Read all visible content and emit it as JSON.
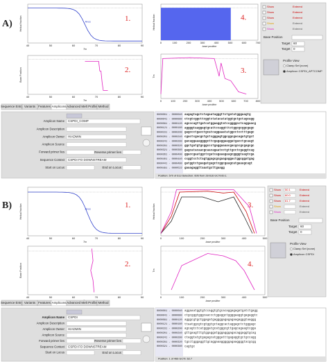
{
  "panels": [
    {
      "label": "A)",
      "plots": [
        {
          "number": "1.",
          "y_label": "Helical fraction",
          "x_label": "Tm",
          "annotation": "Ares",
          "x_ticks": [
            "40",
            "50",
            "60",
            "70",
            "80",
            "90"
          ]
        },
        {
          "number": "2.",
          "y_label": "Base Position",
          "x_label": "Tm",
          "x_ticks": [
            "40",
            "50",
            "60",
            "70",
            "80",
            "90"
          ]
        },
        {
          "number": "3.",
          "y_label": "Tm",
          "x_label": "base position",
          "x_ticks": [
            "0",
            "100",
            "200",
            "300",
            "400",
            "500",
            "600",
            "700",
            "800"
          ]
        },
        {
          "number": "4.",
          "y_label": "Helical fraction",
          "x_label": "base position",
          "x_ticks": [
            "0",
            "100",
            "200",
            "300",
            "400",
            "500",
            "600",
            "700"
          ]
        }
      ],
      "controls": {
        "rows": [
          {
            "show": "Show",
            "state": "Entered"
          },
          {
            "show": "Show",
            "state": "Entered"
          },
          {
            "show": "Show",
            "state": "Entered"
          },
          {
            "show": "Show",
            "state": "Entered"
          },
          {
            "show": "Show",
            "state": "Entered"
          }
        ],
        "base_position": "Base Position",
        "target_1": "Target",
        "target_1_value": "60",
        "target_2": "Target",
        "target_2_value": "0",
        "profile_view": "Profile View",
        "clamp": "Clamp Set (none)",
        "amplicon": "Amplicon CSPDI_APTCOMP"
      },
      "tabs": [
        "Sequence Entry",
        "Variants",
        "Features",
        "Amplicons",
        "Advanced Melt Profile",
        "Method"
      ],
      "form": [
        {
          "label": "Amplicon Name",
          "value": "CSPDI_COMP"
        },
        {
          "label": "Amplicon Description",
          "value": ""
        },
        {
          "label": "Amplicon Owner",
          "value": "HIADMIN"
        },
        {
          "label": "Amplicon Source",
          "value": ""
        },
        {
          "label": "Forward primer lies",
          "value": "Reverse primer lies"
        },
        {
          "label": "Sequence Context",
          "value": "CSPDI FO DOWNSTREAM"
        },
        {
          "label": "Start on Locus",
          "value": "End on Locus"
        }
      ],
      "sequence_lines": [
        {
          "range": "0000001 - 0000040",
          "seq": "aagagtagctctagaatagggttctgatatgggaagtg"
        },
        {
          "range": "0000041 - 0000080",
          "seq": "ctcgtcggcttcggtctatacatatggtgctgctagcagg"
        },
        {
          "range": "0000081 - 0000120",
          "seq": "agcccagttgatcatggaaggtatccggggcctcaggaacg"
        },
        {
          "range": "0000121 - 0000160",
          "seq": "aggggtaaggagtgcattccaggtttctggcgcggcgagc"
        },
        {
          "range": "0000161 - 0000200",
          "seq": "gagccctgacctgcatcaggaaatatggcctcctttgagc"
        },
        {
          "range": "0000201 - 0000240",
          "seq": "cgactcgacgctgctcgggagtggcggcgacagatgtgct"
        },
        {
          "range": "0000241 - 0000280",
          "seq": "gacaggaaaggggcttcgagaggaaggatgacctgcaagt"
        },
        {
          "range": "0000281 - 0000320",
          "seq": "ggctgatgtgcggccctgaggaaaacgacgccgcgagcgc"
        },
        {
          "range": "0000321 - 0000360",
          "seq": "gagcatacaacgcaacagaatcctgttgcctcgaggtcag"
        },
        {
          "range": "0000361 - 0000400",
          "seq": "ggaccgaatggctcgatcagaaagaagcggggtaagtcga"
        },
        {
          "range": "0000401 - 0000440",
          "seq": "ccggtcctctagtggagcgcgaagaggactggcggatgag"
        },
        {
          "range": "0000441 - 0000480",
          "seq": "gatggtctgaagatgagctcggcgaagcatgaaagcagt"
        },
        {
          "range": "0000481 - 0000522",
          "seq": "gaaagaggttaaatgcttgaagg"
        }
      ],
      "status": "Position: 570 of 613   Selection: 606 from 28-616 GC%:60.1"
    },
    {
      "label": "B)",
      "plots": [
        {
          "number": "1.",
          "y_label": "Helical fraction",
          "x_label": "Tm",
          "annotation": "Ares",
          "x_ticks": [
            "40",
            "50",
            "60",
            "70",
            "80",
            "90"
          ]
        },
        {
          "number": "2.",
          "y_label": "Base Position",
          "x_label": "Tm",
          "x_ticks": [
            "40",
            "50",
            "60",
            "70",
            "80",
            "90"
          ]
        },
        {
          "number": "3.",
          "y_label": "Helical fraction",
          "x_label": "base position",
          "x_ticks": [
            "0",
            "100",
            "200",
            "300",
            "400",
            "500"
          ]
        },
        {
          "number": "4.",
          "y_label": "Tm",
          "x_label": "base position",
          "x_ticks": [
            "0",
            "100",
            "200",
            "300",
            "400",
            "500"
          ]
        }
      ],
      "controls": {
        "rows": [
          {
            "show": "Show",
            "value": "50.1",
            "state": "Entered"
          },
          {
            "show": "Show",
            "value": "60.0",
            "state": "Entered"
          },
          {
            "show": "Show",
            "value": "61.7",
            "state": "Entered"
          },
          {
            "show": "Show",
            "value": "",
            "state": "Entered"
          },
          {
            "show": "Show",
            "value": "",
            "state": "Entered"
          }
        ],
        "base_position": "Base Position",
        "target_1": "Target",
        "target_1_value": "60",
        "target_2": "Target",
        "target_2_value": "0",
        "profile_view": "Profile View",
        "clamp": "Clamp Set (none)",
        "amplicon": "Amplicon CSPDI"
      },
      "tabs": [
        "Sequence Entry",
        "Variants",
        "Features",
        "Amplicons",
        "Advanced Melt Profile",
        "Method"
      ],
      "form": [
        {
          "label": "Amplicon Name",
          "value": "CSPDI"
        },
        {
          "label": "Amplicon Description",
          "value": ""
        },
        {
          "label": "Amplicon Owner",
          "value": "HIADMIN"
        },
        {
          "label": "Amplicon Source",
          "value": ""
        },
        {
          "label": "Forward primer lies",
          "value": "Reverse primer lies"
        },
        {
          "label": "Sequence Context",
          "value": "CSPDI FO DOWNSTREAM"
        },
        {
          "label": "Start on Locus",
          "value": "End on Locus"
        }
      ],
      "sequence_lines": [
        {
          "range": "0000001 - 0000040",
          "seq": "aggaaatggtgtccaggtgtgcacaggagagatgatctgagg"
        },
        {
          "range": "0000041 - 0000080",
          "seq": "ctgcgggtgggcaaccctggaggctggggaaggtgagaggtc"
        },
        {
          "range": "0000081 - 0000120",
          "seq": "agggcgtgctggagatgaggggagagagaagagggtaaggg"
        },
        {
          "range": "0000121 - 0000160",
          "seq": "ttaatggcgtcgtggtgctaggcactaggagctctgggagc"
        },
        {
          "range": "0000161 - 0000200",
          "seq": "agcagtctcatgggatgcatgggcgttgagcagaagtcgga"
        },
        {
          "range": "0000201 - 0000240",
          "seq": "gttgaagtttgtggaggatgggagggagacaggaggtgcag"
        },
        {
          "range": "0000241 - 0000280",
          "seq": "ctaggtatgtgagagcatgggatttgagaggtgctgccagg"
        },
        {
          "range": "0000281 - 0000320",
          "seq": "tgcctgggaggttgcaggaaagggggagaaggggtacgcgg"
        },
        {
          "range": "0000321 - 0000360",
          "seq": "cagtgc"
        }
      ],
      "status": "Position: 1 of 466   GC%: 62.7"
    }
  ]
}
